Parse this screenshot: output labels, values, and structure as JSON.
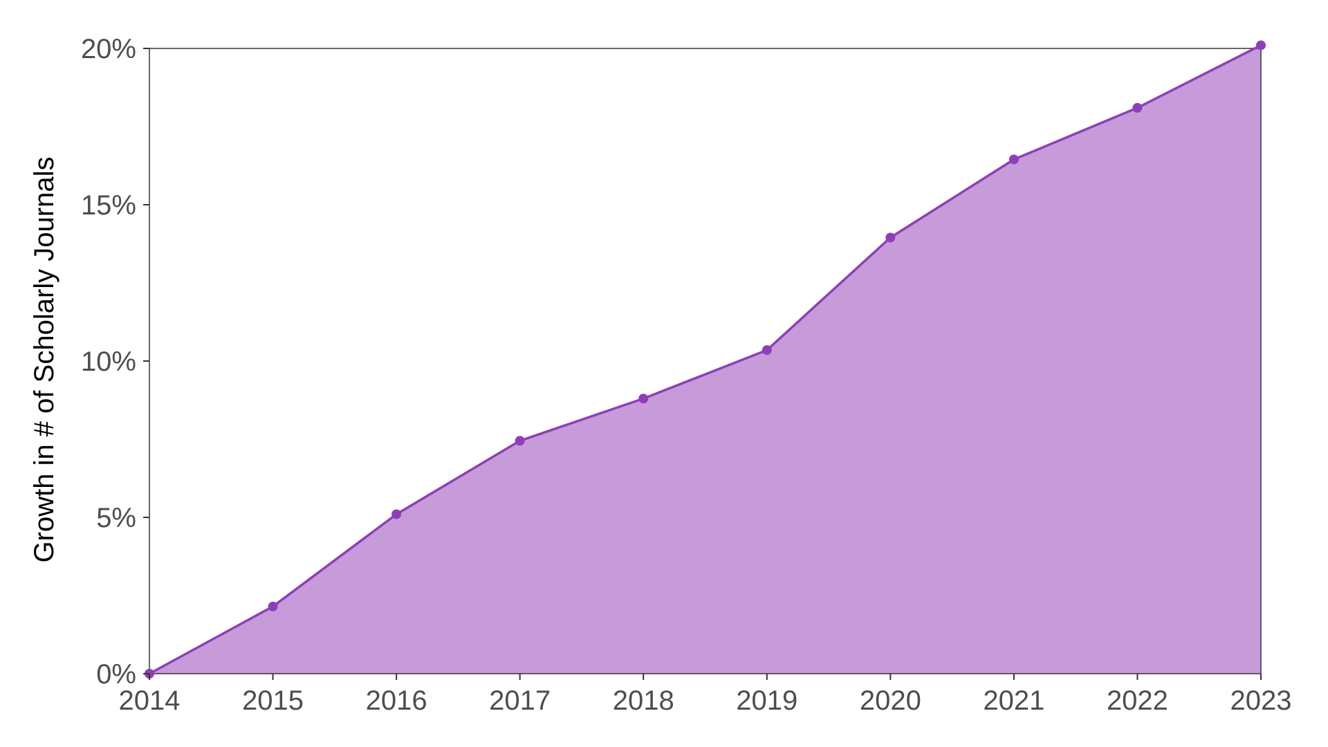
{
  "chart_data": {
    "type": "area",
    "title": "",
    "xlabel": "",
    "ylabel": "Growth in # of Scholarly Journals",
    "x": [
      2014,
      2015,
      2016,
      2017,
      2018,
      2019,
      2020,
      2021,
      2022,
      2023
    ],
    "series": [
      {
        "values": [
          0.0,
          2.15,
          5.1,
          7.45,
          8.8,
          10.35,
          13.95,
          16.45,
          18.1,
          20.1
        ]
      }
    ],
    "xlim": [
      2014,
      2023
    ],
    "ylim": [
      0,
      20
    ],
    "x_ticks": [
      "2014",
      "2015",
      "2016",
      "2017",
      "2018",
      "2019",
      "2020",
      "2021",
      "2022",
      "2023"
    ],
    "y_ticks": [
      "0%",
      "5%",
      "10%",
      "15%",
      "20%"
    ],
    "y_tick_values": [
      0,
      5,
      10,
      15,
      20
    ],
    "grid": false,
    "line_color": "#8e3fb8",
    "fill_color": "#c79bd9"
  }
}
